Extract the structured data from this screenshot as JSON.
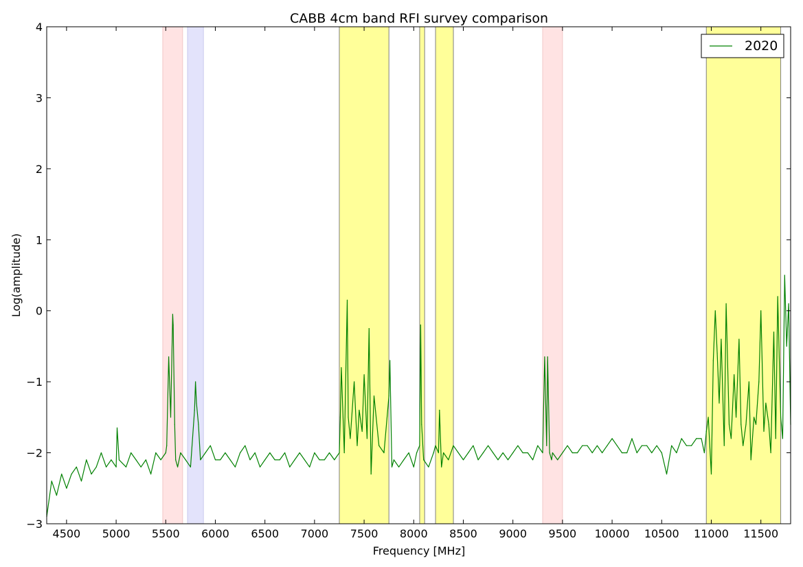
{
  "chart_data": {
    "type": "line",
    "title": "CABB 4cm band RFI survey comparison",
    "xlabel": "Frequency [MHz]",
    "ylabel": "Log(amplitude)",
    "xlim": [
      4300,
      11800
    ],
    "ylim": [
      -3,
      4
    ],
    "xticks": [
      4500,
      5000,
      5500,
      6000,
      6500,
      7000,
      7500,
      8000,
      8500,
      9000,
      9500,
      10000,
      10500,
      11000,
      11500
    ],
    "yticks": [
      -3,
      -2,
      -1,
      0,
      1,
      2,
      3,
      4
    ],
    "ytick_labels": [
      "−3",
      "−2",
      "−1",
      "0",
      "1",
      "2",
      "3",
      "4"
    ],
    "grid": false,
    "legend_position": "top-right",
    "series": [
      {
        "name": "2020",
        "color": "#008000",
        "x": [
          4300,
          4350,
          4400,
          4450,
          4500,
          4550,
          4600,
          4650,
          4700,
          4750,
          4800,
          4850,
          4900,
          4950,
          5000,
          5010,
          5030,
          5100,
          5150,
          5200,
          5250,
          5300,
          5350,
          5400,
          5450,
          5500,
          5510,
          5530,
          5550,
          5570,
          5575,
          5590,
          5600,
          5620,
          5650,
          5700,
          5750,
          5790,
          5800,
          5810,
          5830,
          5850,
          5900,
          5950,
          6000,
          6050,
          6100,
          6150,
          6200,
          6250,
          6300,
          6350,
          6400,
          6450,
          6500,
          6550,
          6600,
          6650,
          6700,
          6750,
          6800,
          6850,
          6900,
          6950,
          7000,
          7050,
          7100,
          7150,
          7200,
          7250,
          7260,
          7270,
          7300,
          7330,
          7340,
          7360,
          7400,
          7430,
          7450,
          7480,
          7500,
          7530,
          7550,
          7570,
          7600,
          7650,
          7700,
          7750,
          7760,
          7780,
          7800,
          7850,
          7900,
          7950,
          8000,
          8030,
          8060,
          8070,
          8080,
          8100,
          8150,
          8200,
          8220,
          8250,
          8260,
          8280,
          8300,
          8350,
          8400,
          8450,
          8500,
          8550,
          8600,
          8650,
          8700,
          8750,
          8800,
          8850,
          8900,
          8950,
          9000,
          9050,
          9100,
          9150,
          9200,
          9250,
          9300,
          9320,
          9340,
          9350,
          9370,
          9390,
          9400,
          9450,
          9500,
          9550,
          9600,
          9650,
          9700,
          9750,
          9800,
          9850,
          9900,
          9950,
          10000,
          10050,
          10100,
          10150,
          10200,
          10250,
          10300,
          10350,
          10400,
          10450,
          10500,
          10550,
          10600,
          10650,
          10700,
          10750,
          10800,
          10850,
          10900,
          10930,
          10950,
          10970,
          11000,
          11020,
          11040,
          11060,
          11080,
          11100,
          11130,
          11150,
          11180,
          11200,
          11230,
          11250,
          11280,
          11300,
          11320,
          11350,
          11380,
          11400,
          11430,
          11450,
          11480,
          11500,
          11530,
          11550,
          11580,
          11600,
          11630,
          11650,
          11670,
          11700,
          11720,
          11740,
          11760,
          11780,
          11800
        ],
        "y": [
          -2.9,
          -2.4,
          -2.6,
          -2.3,
          -2.5,
          -2.3,
          -2.2,
          -2.4,
          -2.1,
          -2.3,
          -2.2,
          -2.0,
          -2.2,
          -2.1,
          -2.2,
          -1.65,
          -2.1,
          -2.2,
          -2.0,
          -2.1,
          -2.2,
          -2.1,
          -2.3,
          -2.0,
          -2.1,
          -2.0,
          -1.9,
          -0.65,
          -1.5,
          -0.05,
          -0.2,
          -1.6,
          -2.1,
          -2.2,
          -2.0,
          -2.1,
          -2.2,
          -1.4,
          -1.0,
          -1.3,
          -1.6,
          -2.1,
          -2.0,
          -1.9,
          -2.1,
          -2.1,
          -2.0,
          -2.1,
          -2.2,
          -2.0,
          -1.9,
          -2.1,
          -2.0,
          -2.2,
          -2.1,
          -2.0,
          -2.1,
          -2.1,
          -2.0,
          -2.2,
          -2.1,
          -2.0,
          -2.1,
          -2.2,
          -2.0,
          -2.1,
          -2.1,
          -2.0,
          -2.1,
          -2.0,
          -1.5,
          -0.8,
          -2.0,
          0.15,
          -1.5,
          -1.8,
          -1.0,
          -1.9,
          -1.4,
          -1.7,
          -0.9,
          -1.8,
          -0.25,
          -2.3,
          -1.2,
          -1.9,
          -2.0,
          -1.2,
          -0.7,
          -2.2,
          -2.1,
          -2.2,
          -2.1,
          -2.0,
          -2.2,
          -2.0,
          -1.9,
          -0.2,
          -1.6,
          -2.1,
          -2.2,
          -2.0,
          -1.9,
          -2.0,
          -1.4,
          -2.2,
          -2.0,
          -2.1,
          -1.9,
          -2.0,
          -2.1,
          -2.0,
          -1.9,
          -2.1,
          -2.0,
          -1.9,
          -2.0,
          -2.1,
          -2.0,
          -2.1,
          -2.0,
          -1.9,
          -2.0,
          -2.0,
          -2.1,
          -1.9,
          -2.0,
          -0.65,
          -1.9,
          -0.65,
          -2.0,
          -2.1,
          -2.0,
          -2.1,
          -2.0,
          -1.9,
          -2.0,
          -2.0,
          -1.9,
          -1.9,
          -2.0,
          -1.9,
          -2.0,
          -1.9,
          -1.8,
          -1.9,
          -2.0,
          -2.0,
          -1.8,
          -2.0,
          -1.9,
          -1.9,
          -2.0,
          -1.9,
          -2.0,
          -2.3,
          -1.9,
          -2.0,
          -1.8,
          -1.9,
          -1.9,
          -1.8,
          -1.8,
          -2.0,
          -1.7,
          -1.5,
          -2.3,
          -0.7,
          0.0,
          -0.6,
          -1.3,
          -0.4,
          -1.9,
          0.1,
          -1.6,
          -1.8,
          -0.9,
          -1.5,
          -0.4,
          -1.6,
          -1.9,
          -1.6,
          -1.0,
          -2.1,
          -1.5,
          -1.6,
          -1.0,
          0.0,
          -1.7,
          -1.3,
          -1.6,
          -2.0,
          -0.3,
          -1.8,
          0.2,
          -1.5,
          -1.8,
          0.5,
          -0.5,
          0.1,
          -1.6
        ]
      }
    ],
    "shaded_regions": [
      {
        "xmin": 5470,
        "xmax": 5670,
        "color": "#ffe3e3",
        "edge": "#f2c8c8"
      },
      {
        "xmin": 5720,
        "xmax": 5880,
        "color": "#e3e3fb",
        "edge": "#c8c8ee"
      },
      {
        "xmin": 7250,
        "xmax": 7750,
        "color": "#ffff99",
        "edge": "#808080"
      },
      {
        "xmin": 8060,
        "xmax": 8110,
        "color": "#ffff99",
        "edge": "#808080"
      },
      {
        "xmin": 8220,
        "xmax": 8400,
        "color": "#ffff99",
        "edge": "#808080"
      },
      {
        "xmin": 9300,
        "xmax": 9500,
        "color": "#ffe3e3",
        "edge": "#f2c8c8"
      },
      {
        "xmin": 10950,
        "xmax": 11700,
        "color": "#ffff99",
        "edge": "#808080"
      }
    ]
  }
}
